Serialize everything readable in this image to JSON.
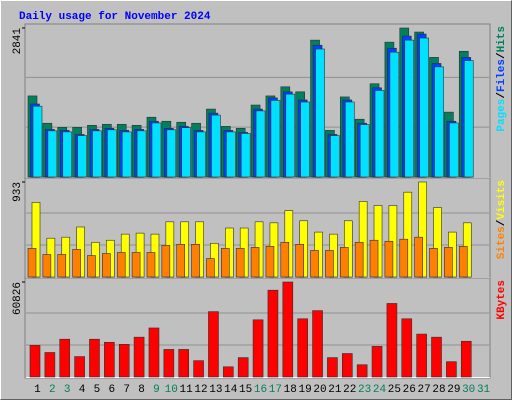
{
  "chart_data": [
    {
      "type": "bar",
      "title": "Daily usage for November 2024",
      "series": [
        {
          "name": "Pages",
          "color": "#00e0ff",
          "values": [
            1350,
            880,
            860,
            790,
            880,
            900,
            860,
            880,
            1030,
            900,
            940,
            860,
            1180,
            860,
            830,
            1260,
            1460,
            1580,
            1430,
            2440,
            790,
            1430,
            1000,
            1650,
            2380,
            2610,
            2650,
            2100,
            1030,
            2220,
            null
          ]
        },
        {
          "name": "Files",
          "color": "#0040ff",
          "values": [
            1392,
            908,
            889,
            812,
            908,
            928,
            889,
            908,
            1063,
            928,
            966,
            889,
            1218,
            889,
            850,
            1295,
            1508,
            1624,
            1469,
            2513,
            812,
            1469,
            1025,
            1701,
            2455,
            2687,
            2726,
            2165,
            1063,
            2281,
            null
          ]
        },
        {
          "name": "Hits",
          "color": "#00805c",
          "values": [
            1546,
            1025,
            947,
            947,
            986,
            1005,
            1005,
            986,
            1140,
            1063,
            1044,
            1025,
            1295,
            966,
            928,
            1372,
            1546,
            1720,
            1624,
            2610,
            889,
            1527,
            1102,
            1778,
            2571,
            2841,
            2764,
            2281,
            1237,
            2397,
            null
          ]
        }
      ],
      "draw_order": [
        "Hits",
        "Files",
        "Pages"
      ],
      "legend_separator": "/",
      "ylim": [
        0,
        2841
      ],
      "yticks": [
        2841
      ]
    },
    {
      "type": "bar",
      "series": [
        {
          "name": "Sites",
          "color": "#ff8000",
          "values": [
            281,
            221,
            221,
            271,
            211,
            231,
            241,
            241,
            241,
            311,
            321,
            321,
            181,
            281,
            281,
            291,
            301,
            341,
            321,
            261,
            261,
            291,
            341,
            361,
            351,
            371,
            391,
            281,
            291,
            301,
            null
          ]
        },
        {
          "name": "Visits",
          "color": "#ffff00",
          "values": [
            733,
            381,
            391,
            491,
            341,
            361,
            421,
            431,
            421,
            542,
            542,
            542,
            331,
            481,
            481,
            542,
            532,
            652,
            552,
            441,
            421,
            552,
            742,
            702,
            702,
            833,
            933,
            682,
            441,
            532,
            null
          ]
        }
      ],
      "draw_order": [
        "Visits",
        "Sites"
      ],
      "legend_separator": "/",
      "ylim": [
        0,
        933
      ],
      "yticks": [
        933
      ]
    },
    {
      "type": "bar",
      "categories": [
        "1",
        "2",
        "3",
        "4",
        "5",
        "6",
        "7",
        "8",
        "9",
        "10",
        "11",
        "12",
        "13",
        "14",
        "15",
        "16",
        "17",
        "18",
        "19",
        "20",
        "21",
        "22",
        "23",
        "24",
        "25",
        "26",
        "27",
        "28",
        "29",
        "30",
        "31"
      ],
      "category_colors": [
        "#000000",
        "#00805c",
        "#00805c",
        "#000000",
        "#000000",
        "#000000",
        "#000000",
        "#000000",
        "#00805c",
        "#00805c",
        "#000000",
        "#000000",
        "#000000",
        "#000000",
        "#000000",
        "#00805c",
        "#00805c",
        "#000000",
        "#000000",
        "#000000",
        "#000000",
        "#000000",
        "#00805c",
        "#00805c",
        "#000000",
        "#000000",
        "#000000",
        "#000000",
        "#000000",
        "#00805c",
        "#00805c"
      ],
      "series": [
        {
          "name": "KBytes",
          "color": "#ff0000",
          "values": [
            20274,
            15696,
            24198,
            13080,
            24198,
            22236,
            20928,
            25506,
            31392,
            17658,
            17658,
            10464,
            41856,
            6540,
            12426,
            36624,
            55590,
            60826,
            37278,
            42510,
            12426,
            15042,
            7848,
            19620,
            47088,
            37278,
            27468,
            25506,
            9810,
            22890,
            null
          ]
        }
      ],
      "draw_order": [
        "KBytes"
      ],
      "ylim": [
        0,
        60826
      ],
      "yticks": [
        60826
      ]
    }
  ]
}
